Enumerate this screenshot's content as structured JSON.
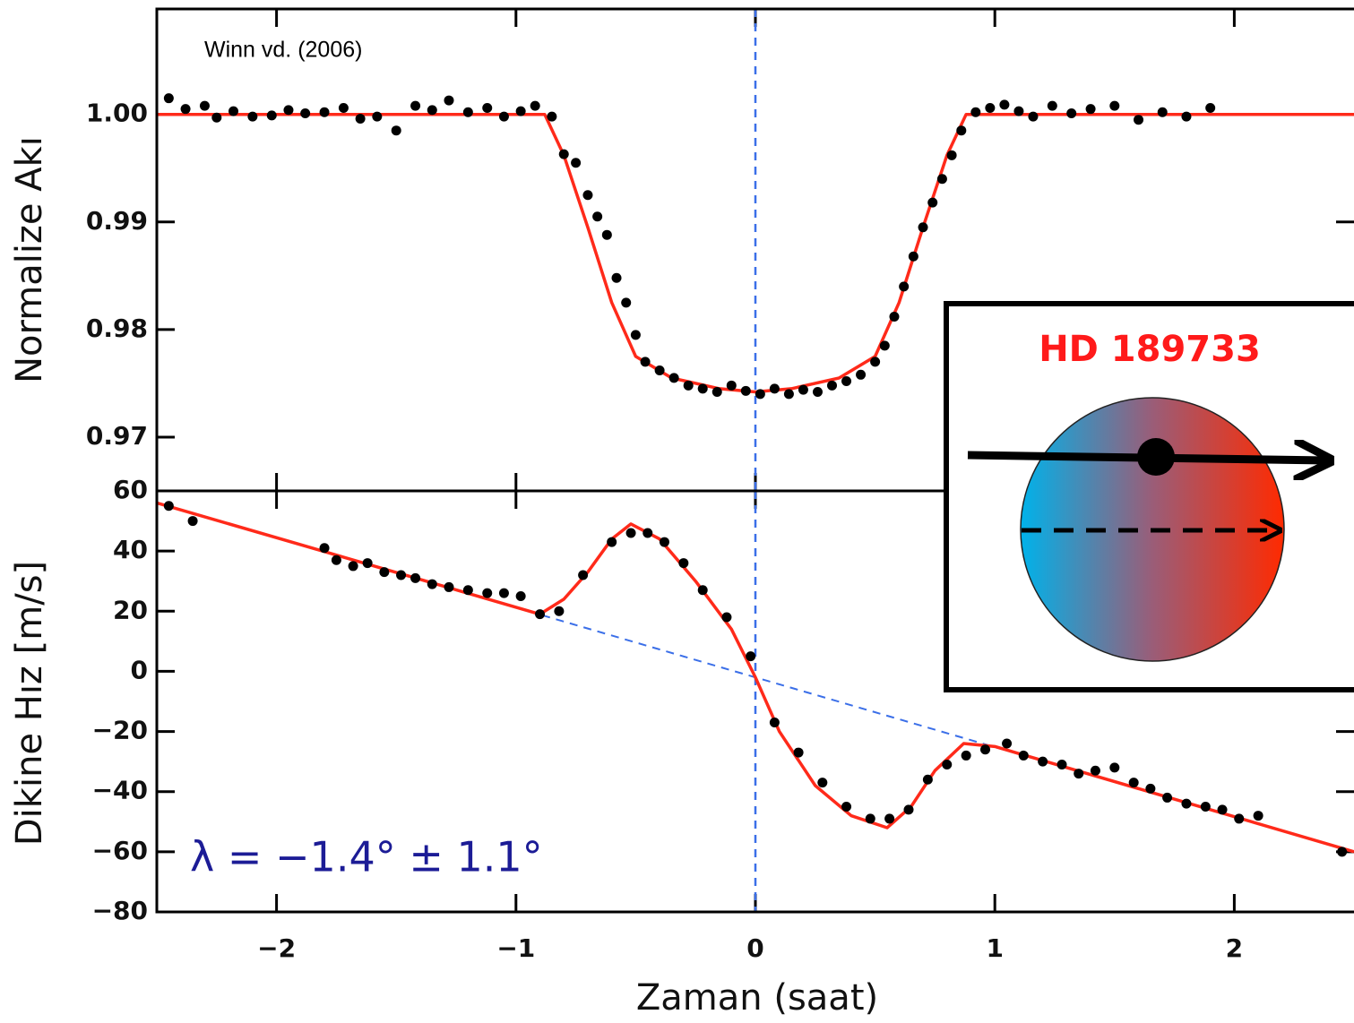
{
  "chart_data": [
    {
      "type": "scatter",
      "ylabel": "Normalize Akı",
      "annotation": "Winn vd. (2006)",
      "xlim": [
        -2.5,
        2.5
      ],
      "ylim": [
        0.965,
        1.0098
      ],
      "yticks": [
        {
          "value": 1,
          "label": "1.00"
        },
        {
          "value": 0.99,
          "label": "0.99"
        },
        {
          "value": 0.98,
          "label": "0.98"
        },
        {
          "value": 0.97,
          "label": "0.97"
        }
      ],
      "reference_line": {
        "x": 0,
        "color": "#3b6fe8"
      },
      "series": [
        {
          "style": "line",
          "color": "#ff2a1a",
          "x": [
            -2.5,
            -0.88,
            -0.8,
            -0.7,
            -0.6,
            -0.5,
            -0.35,
            -0.15,
            0,
            0.15,
            0.35,
            0.5,
            0.6,
            0.7,
            0.8,
            0.88,
            2.5
          ],
          "values": [
            1,
            1,
            0.9962,
            0.9895,
            0.9825,
            0.9775,
            0.9755,
            0.9745,
            0.9742,
            0.9745,
            0.9755,
            0.9775,
            0.9825,
            0.9895,
            0.9962,
            1,
            1
          ]
        },
        {
          "style": "marker",
          "color": "#000000",
          "x": [
            -2.45,
            -2.38,
            -2.3,
            -2.25,
            -2.18,
            -2.1,
            -2.02,
            -1.95,
            -1.88,
            -1.8,
            -1.72,
            -1.65,
            -1.58,
            -1.5,
            -1.42,
            -1.35,
            -1.28,
            -1.2,
            -1.12,
            -1.05,
            -0.98,
            -0.92,
            -0.85,
            -0.8,
            -0.75,
            -0.7,
            -0.66,
            -0.62,
            -0.58,
            -0.54,
            -0.5,
            -0.46,
            -0.4,
            -0.34,
            -0.28,
            -0.22,
            -0.16,
            -0.1,
            -0.04,
            0.02,
            0.08,
            0.14,
            0.2,
            0.26,
            0.32,
            0.38,
            0.44,
            0.5,
            0.54,
            0.58,
            0.62,
            0.66,
            0.7,
            0.74,
            0.78,
            0.82,
            0.86,
            0.92,
            0.98,
            1.04,
            1.1,
            1.16,
            1.24,
            1.32,
            1.4,
            1.5,
            1.6,
            1.7,
            1.8,
            1.9
          ],
          "values": [
            1.0015,
            1.0005,
            1.0008,
            0.9997,
            1.0003,
            0.9998,
            0.9999,
            1.0004,
            1.0001,
            1.0002,
            1.0006,
            0.9996,
            0.9998,
            0.9985,
            1.0008,
            1.0004,
            1.0013,
            1.0002,
            1.0006,
            0.9998,
            1.0003,
            1.0008,
            0.9998,
            0.9963,
            0.9955,
            0.9925,
            0.9905,
            0.9888,
            0.9848,
            0.9825,
            0.9795,
            0.977,
            0.9762,
            0.9755,
            0.9748,
            0.9745,
            0.9742,
            0.9748,
            0.9743,
            0.974,
            0.9745,
            0.974,
            0.9744,
            0.9742,
            0.9748,
            0.9752,
            0.9758,
            0.977,
            0.9785,
            0.9812,
            0.984,
            0.9868,
            0.9895,
            0.9918,
            0.994,
            0.9962,
            0.9985,
            1.0002,
            1.0006,
            1.0009,
            1.0003,
            0.9998,
            1.0008,
            1.0001,
            1.0005,
            1.0008,
            0.9995,
            1.0002,
            0.9998,
            1.0006
          ]
        }
      ]
    },
    {
      "type": "scatter",
      "ylabel": "Dikine Hız [m/s]",
      "xlabel": "Zaman (saat)",
      "annotation": "λ = −1.4° ± 1.1°",
      "xlim": [
        -2.5,
        2.5
      ],
      "ylim": [
        -80,
        60
      ],
      "xticks": [
        {
          "value": -2,
          "label": "−2"
        },
        {
          "value": -1,
          "label": "−1"
        },
        0,
        1,
        2
      ],
      "yticks": [
        60,
        40,
        20,
        0,
        {
          "value": -20,
          "label": "−20"
        },
        {
          "value": -40,
          "label": "−40"
        },
        {
          "value": -60,
          "label": "−60"
        },
        {
          "value": -80,
          "label": "−80"
        }
      ],
      "reference_line": {
        "x": 0,
        "color": "#3b6fe8"
      },
      "series": [
        {
          "style": "dashed",
          "color": "#3b6fe8",
          "x": [
            -2.5,
            2.5
          ],
          "values": [
            56,
            -60
          ]
        },
        {
          "style": "line",
          "color": "#ff2a1a",
          "x": [
            -2.5,
            -0.9,
            -0.8,
            -0.7,
            -0.6,
            -0.52,
            -0.4,
            -0.25,
            -0.1,
            0,
            0.1,
            0.25,
            0.4,
            0.55,
            0.65,
            0.75,
            0.87,
            1.0,
            2.5
          ],
          "values": [
            56,
            19,
            24,
            33,
            44,
            49,
            44,
            30,
            14,
            -2,
            -20,
            -38,
            -48,
            -52,
            -45,
            -33,
            -24,
            -25,
            -60
          ]
        },
        {
          "style": "marker",
          "color": "#000000",
          "x": [
            -2.45,
            -2.35,
            -1.8,
            -1.75,
            -1.68,
            -1.62,
            -1.55,
            -1.48,
            -1.42,
            -1.35,
            -1.28,
            -1.2,
            -1.12,
            -1.05,
            -0.98,
            -0.9,
            -0.82,
            -0.72,
            -0.6,
            -0.52,
            -0.45,
            -0.38,
            -0.3,
            -0.22,
            -0.12,
            -0.02,
            0.08,
            0.18,
            0.28,
            0.38,
            0.48,
            0.56,
            0.64,
            0.72,
            0.8,
            0.88,
            0.96,
            1.05,
            1.12,
            1.2,
            1.28,
            1.35,
            1.42,
            1.5,
            1.58,
            1.65,
            1.72,
            1.8,
            1.88,
            1.95,
            2.02,
            2.1,
            2.45
          ],
          "values": [
            55,
            50,
            41,
            37,
            35,
            36,
            33,
            32,
            31,
            29,
            28,
            27,
            26,
            26,
            25,
            19,
            20,
            32,
            43,
            46,
            46,
            43,
            36,
            27,
            18,
            5,
            -17,
            -27,
            -37,
            -45,
            -49,
            -49,
            -46,
            -36,
            -31,
            -28,
            -26,
            -24,
            -28,
            -30,
            -31,
            -34,
            -33,
            -32,
            -37,
            -39,
            -42,
            -44,
            -45,
            -46,
            -49,
            -48,
            -60
          ]
        }
      ]
    }
  ],
  "inset": {
    "title": "HD 189733"
  }
}
